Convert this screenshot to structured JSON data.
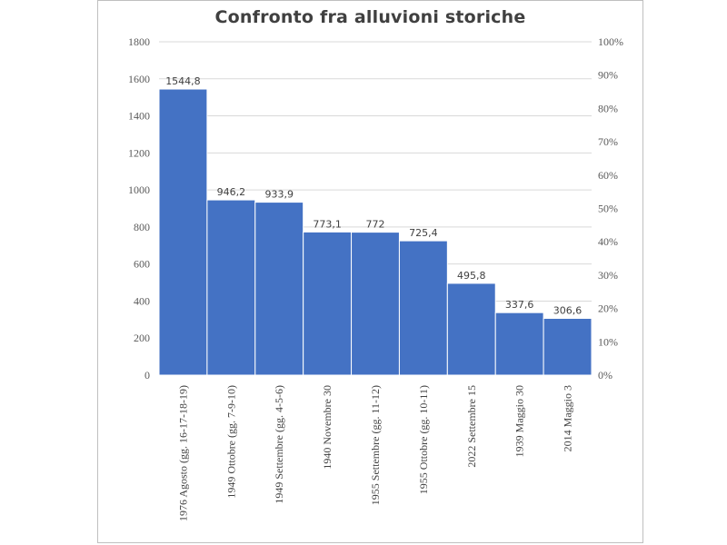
{
  "chart_data": {
    "type": "bar",
    "title": "Confronto fra alluvioni storiche",
    "categories": [
      "1976 Agosto (gg. 16-17-18-19)",
      "1949 Ottobre (gg. 7-9-10)",
      "1949 Settembre (gg. 4-5-6)",
      "1940 Novembre 30",
      "1955 Settembre (gg. 11-12)",
      "1955 Ottobre (gg. 10-11)",
      "2022 Settembre 15",
      "1939 Maggio 30",
      "2014 Maggio 3"
    ],
    "values": [
      1544.8,
      946.2,
      933.9,
      773.1,
      772,
      725.4,
      495.8,
      337.6,
      306.6
    ],
    "value_labels": [
      "1544,8",
      "946,2",
      "933,9",
      "773,1",
      "772",
      "725,4",
      "495,8",
      "337,6",
      "306,6"
    ],
    "ylim": [
      0,
      1800
    ],
    "yticks": [
      "0",
      "200",
      "400",
      "600",
      "800",
      "1000",
      "1200",
      "1400",
      "1600",
      "1800"
    ],
    "y2lim": [
      0,
      100
    ],
    "y2ticks": [
      "0%",
      "10%",
      "20%",
      "30%",
      "40%",
      "50%",
      "60%",
      "70%",
      "80%",
      "90%",
      "100%"
    ],
    "grid": true,
    "bar_color": "#4472c4",
    "xlabel": "",
    "ylabel": ""
  }
}
